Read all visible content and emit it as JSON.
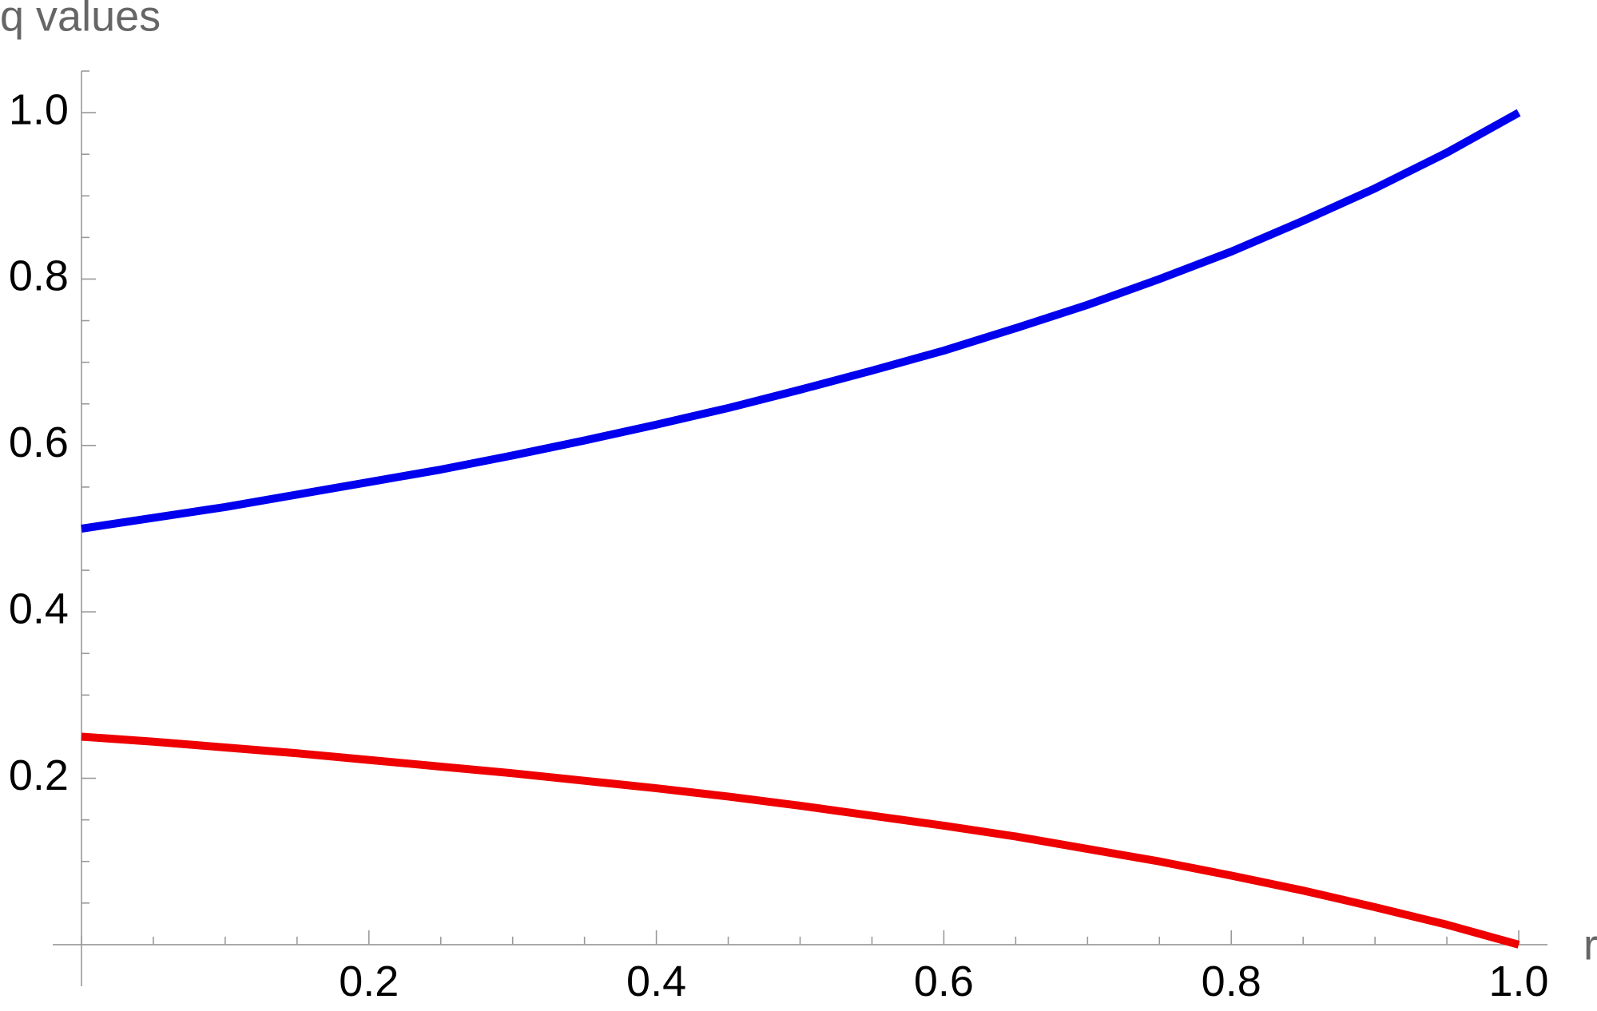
{
  "chart_data": {
    "type": "line",
    "x_label": "r",
    "y_label": "q values",
    "x": [
      0,
      0.05,
      0.1,
      0.15,
      0.2,
      0.25,
      0.3,
      0.35,
      0.4,
      0.45,
      0.5,
      0.55,
      0.6,
      0.65,
      0.7,
      0.75,
      0.8,
      0.85,
      0.9,
      0.95,
      1
    ],
    "series": [
      {
        "color": "#0000ee",
        "values": [
          0.5,
          0.513,
          0.526,
          0.541,
          0.556,
          0.571,
          0.588,
          0.606,
          0.625,
          0.645,
          0.667,
          0.69,
          0.714,
          0.741,
          0.769,
          0.8,
          0.833,
          0.87,
          0.909,
          0.952,
          1
        ]
      },
      {
        "color": "#ee0000",
        "values": [
          0.25,
          0.244,
          0.237,
          0.23,
          0.222,
          0.214,
          0.206,
          0.197,
          0.188,
          0.178,
          0.167,
          0.155,
          0.143,
          0.13,
          0.115,
          0.1,
          0.083,
          0.065,
          0.045,
          0.024,
          0
        ]
      }
    ],
    "xlim": [
      -0.02,
      1.02
    ],
    "ylim": [
      -0.05,
      1.05
    ],
    "xticks": [
      {
        "value": 0.2,
        "label": "0.2"
      },
      {
        "value": 0.4,
        "label": "0.4"
      },
      {
        "value": 0.6,
        "label": "0.6"
      },
      {
        "value": 0.8,
        "label": "0.8"
      },
      {
        "value": 1,
        "label": "1.0"
      }
    ],
    "yticks": [
      {
        "value": 0.2,
        "label": "0.2"
      },
      {
        "value": 0.4,
        "label": "0.4"
      },
      {
        "value": 0.6,
        "label": "0.6"
      },
      {
        "value": 0.8,
        "label": "0.8"
      },
      {
        "value": 1,
        "label": "1.0"
      }
    ],
    "xminorticks": [
      0,
      0.05,
      0.1,
      0.15,
      0.25,
      0.3,
      0.35,
      0.45,
      0.5,
      0.55,
      0.65,
      0.7,
      0.75,
      0.85,
      0.9,
      0.95
    ],
    "yminorticks": [
      0.05,
      0.1,
      0.15,
      0.25,
      0.3,
      0.35,
      0.45,
      0.5,
      0.55,
      0.65,
      0.7,
      0.75,
      0.85,
      0.9,
      0.95,
      1.05
    ]
  }
}
